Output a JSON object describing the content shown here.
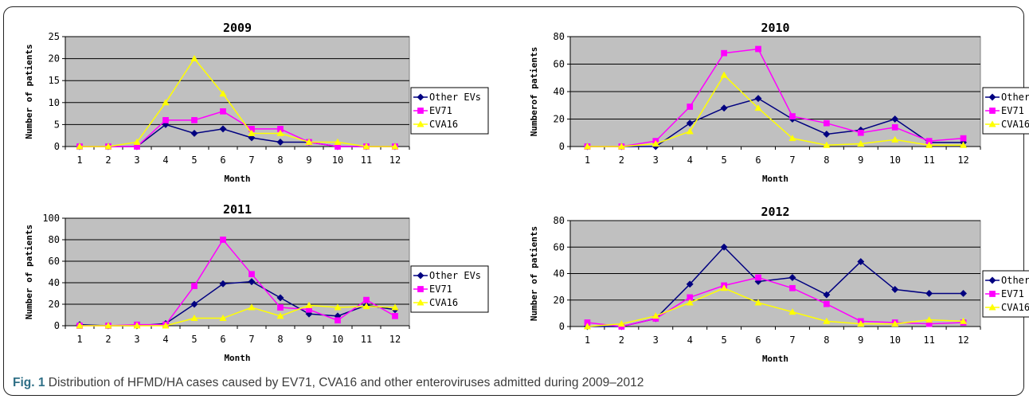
{
  "caption": {
    "label": "Fig. 1",
    "text": " Distribution of HFMD/HA cases caused by EV71, CVA16 and other enteroviruses admitted during 2009–2012"
  },
  "colors": {
    "plot_bg": "#c0c0c0",
    "other_evs": "#000080",
    "ev71": "#ff00ff",
    "cva16": "#ffff00"
  },
  "chart_data": [
    {
      "type": "line",
      "title": "2009",
      "xlabel": "Month",
      "ylabel": "Number of patients",
      "categories": [
        "1",
        "2",
        "3",
        "4",
        "5",
        "6",
        "7",
        "8",
        "9",
        "10",
        "11",
        "12"
      ],
      "ylim": [
        0,
        25
      ],
      "yticks": [
        0,
        5,
        10,
        15,
        20,
        25
      ],
      "grid": true,
      "legend": "right",
      "series": [
        {
          "name": "Other EVs",
          "values": [
            0,
            0,
            0,
            5,
            3,
            4,
            2,
            1,
            1,
            0,
            0,
            0
          ]
        },
        {
          "name": "EV71",
          "values": [
            0,
            0,
            0,
            6,
            6,
            8,
            4,
            4,
            1,
            0,
            0,
            0
          ]
        },
        {
          "name": "CVA16",
          "values": [
            0,
            0,
            1,
            10,
            20,
            12,
            3,
            3,
            1,
            1,
            0,
            0
          ]
        }
      ]
    },
    {
      "type": "line",
      "title": "2010",
      "xlabel": "Month",
      "ylabel": "Numberof patients",
      "categories": [
        "1",
        "2",
        "3",
        "4",
        "5",
        "6",
        "7",
        "8",
        "9",
        "10",
        "11",
        "12"
      ],
      "ylim": [
        0,
        80
      ],
      "yticks": [
        0,
        20,
        40,
        60,
        80
      ],
      "grid": true,
      "legend": "right",
      "series": [
        {
          "name": "Other EVs",
          "values": [
            0,
            0,
            0,
            17,
            28,
            35,
            20,
            9,
            12,
            20,
            3,
            3
          ]
        },
        {
          "name": "EV71",
          "values": [
            0,
            0,
            4,
            29,
            68,
            71,
            22,
            17,
            10,
            14,
            4,
            6
          ]
        },
        {
          "name": "CVA16",
          "values": [
            0,
            0,
            2,
            11,
            52,
            28,
            6,
            1,
            2,
            5,
            1,
            1
          ]
        }
      ]
    },
    {
      "type": "line",
      "title": "2011",
      "xlabel": "Month",
      "ylabel": "Number of patients",
      "categories": [
        "1",
        "2",
        "3",
        "4",
        "5",
        "6",
        "7",
        "8",
        "9",
        "10",
        "11",
        "12"
      ],
      "ylim": [
        0,
        100
      ],
      "yticks": [
        0,
        20,
        40,
        60,
        80,
        100
      ],
      "grid": true,
      "legend": "right",
      "series": [
        {
          "name": "Other EVs",
          "values": [
            1,
            0,
            0,
            2,
            20,
            39,
            41,
            26,
            11,
            9,
            19,
            15
          ]
        },
        {
          "name": "EV71",
          "values": [
            0,
            0,
            1,
            1,
            37,
            80,
            48,
            17,
            15,
            5,
            24,
            9
          ]
        },
        {
          "name": "CVA16",
          "values": [
            0,
            0,
            0,
            0,
            7,
            7,
            17,
            9,
            19,
            17,
            18,
            17
          ]
        }
      ]
    },
    {
      "type": "line",
      "title": "2012",
      "xlabel": "Month",
      "ylabel": "Number of patients",
      "categories": [
        "1",
        "2",
        "3",
        "4",
        "5",
        "6",
        "7",
        "8",
        "9",
        "10",
        "11",
        "12"
      ],
      "ylim": [
        0,
        80
      ],
      "yticks": [
        0,
        20,
        40,
        60,
        80
      ],
      "grid": true,
      "legend": "right",
      "series": [
        {
          "name": "Other EVs",
          "values": [
            0,
            0,
            6,
            32,
            60,
            34,
            37,
            24,
            49,
            28,
            25,
            25
          ]
        },
        {
          "name": "EV71",
          "values": [
            3,
            0,
            6,
            22,
            31,
            37,
            29,
            17,
            4,
            3,
            2,
            3
          ]
        },
        {
          "name": "CVA16",
          "values": [
            0,
            2,
            8,
            18,
            29,
            18,
            11,
            4,
            2,
            2,
            5,
            4
          ]
        }
      ]
    }
  ]
}
